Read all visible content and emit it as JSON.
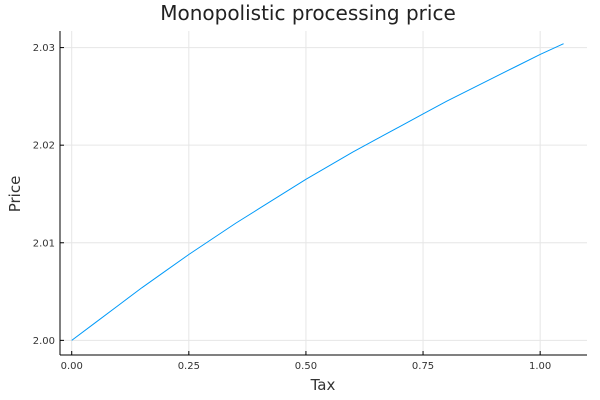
{
  "chart_data": {
    "type": "line",
    "title": "Monopolistic processing price",
    "xlabel": "Tax",
    "ylabel": "Price",
    "xlim": [
      -0.025,
      1.1
    ],
    "ylim": [
      1.9985,
      2.0317
    ],
    "grid": true,
    "legend": "none",
    "x_ticks": [
      0.0,
      0.25,
      0.5,
      0.75,
      1.0
    ],
    "x_tick_labels": [
      "0.00",
      "0.25",
      "0.50",
      "0.75",
      "1.00"
    ],
    "y_ticks": [
      2.0,
      2.01,
      2.02,
      2.03
    ],
    "y_tick_labels": [
      "2.00",
      "2.01",
      "2.02",
      "2.03"
    ],
    "series": [
      {
        "color": "#009af9",
        "x": [
          0.0,
          0.05,
          0.1,
          0.15,
          0.2,
          0.25,
          0.3,
          0.35,
          0.4,
          0.45,
          0.5,
          0.55,
          0.6,
          0.65,
          0.7,
          0.75,
          0.8,
          0.85,
          0.9,
          0.95,
          1.0,
          1.05
        ],
        "y": [
          2.0,
          2.0018,
          2.0036,
          2.0054,
          2.0071,
          2.0088,
          2.0104,
          2.012,
          2.0135,
          2.015,
          2.0165,
          2.0179,
          2.0193,
          2.0206,
          2.0219,
          2.0232,
          2.0245,
          2.0257,
          2.0269,
          2.0281,
          2.0293,
          2.0304
        ]
      }
    ]
  }
}
